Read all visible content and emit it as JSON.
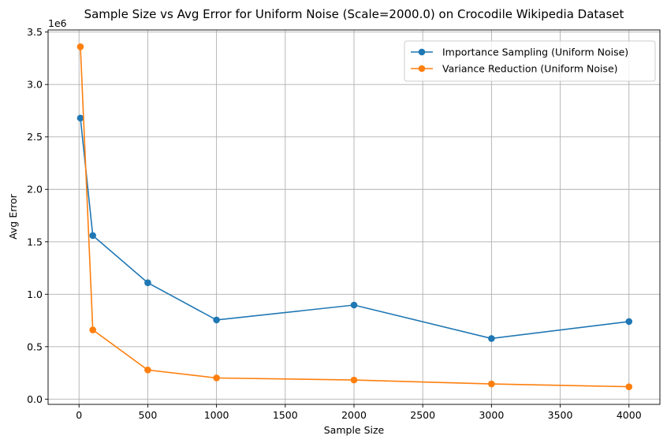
{
  "chart_data": {
    "type": "line",
    "title": "Sample Size vs Avg Error for Uniform Noise (Scale=2000.0) on Crocodile Wikipedia Dataset",
    "xlabel": "Sample Size",
    "ylabel": "Avg Error",
    "y_offset_label": "1e6",
    "xlim": [
      -225,
      4225
    ],
    "ylim": [
      -50000,
      3520000
    ],
    "x_ticks": [
      0,
      500,
      1000,
      1500,
      2000,
      2500,
      3000,
      3500,
      4000
    ],
    "y_ticks": [
      0,
      500000,
      1000000,
      1500000,
      2000000,
      2500000,
      3000000,
      3500000
    ],
    "y_tick_labels": [
      "0.0",
      "0.5",
      "1.0",
      "1.5",
      "2.0",
      "2.5",
      "3.0",
      "3.5"
    ],
    "grid": true,
    "legend_position": "top-right",
    "series": [
      {
        "name": "Importance Sampling (Uniform Noise)",
        "color": "#1f77b4",
        "x": [
          10,
          100,
          500,
          1000,
          2000,
          3000,
          4000
        ],
        "y": [
          2680000,
          1560000,
          1110000,
          755000,
          897000,
          578000,
          740000
        ]
      },
      {
        "name": "Variance Reduction (Uniform Noise)",
        "color": "#ff7f0e",
        "x": [
          10,
          100,
          500,
          1000,
          2000,
          3000,
          4000
        ],
        "y": [
          3360000,
          660000,
          278000,
          202000,
          182000,
          145000,
          118000
        ]
      }
    ]
  }
}
